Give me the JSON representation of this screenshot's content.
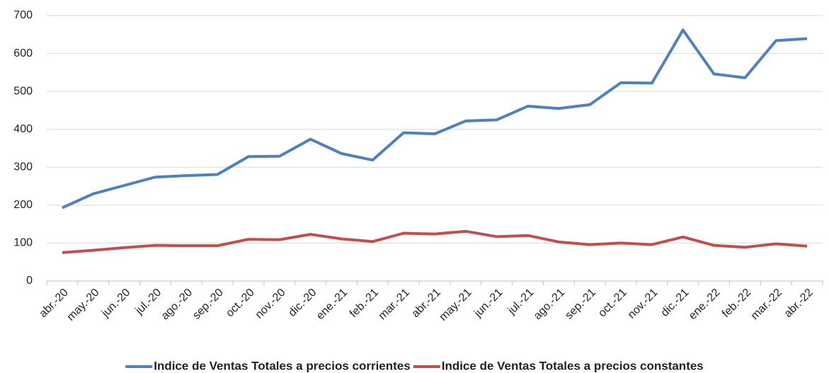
{
  "chart_data": {
    "type": "line",
    "categories": [
      "abr.-20",
      "may.-20",
      "jun.-20",
      "jul.-20",
      "ago.-20",
      "sep.-20",
      "oct.-20",
      "nov.-20",
      "dic.-20",
      "ene.-21",
      "feb.-21",
      "mar.-21",
      "abr.-21",
      "may.-21",
      "jun.-21",
      "jul.-21",
      "ago.-21",
      "sep.-21",
      "oct.-21",
      "nov.-21",
      "dic.-21",
      "ene.-22",
      "feb.-22",
      "mar.-22",
      "abr.-22"
    ],
    "series": [
      {
        "name": "Indice de Ventas Totales a precios corrientes",
        "color": "#4f81bd",
        "values": [
          193,
          230,
          252,
          274,
          278,
          281,
          328,
          329,
          374,
          336,
          319,
          391,
          388,
          422,
          425,
          461,
          455,
          465,
          523,
          522,
          662,
          546,
          536,
          634,
          639
        ]
      },
      {
        "name": "Indice de Ventas Totales a precios constantes",
        "color": "#c0504d",
        "values": [
          75,
          81,
          88,
          94,
          93,
          93,
          110,
          109,
          123,
          111,
          104,
          126,
          124,
          131,
          117,
          120,
          103,
          96,
          100,
          96,
          116,
          94,
          89,
          98,
          92
        ]
      }
    ],
    "ylim": [
      0,
      700
    ],
    "yticks": [
      0,
      100,
      200,
      300,
      400,
      500,
      600,
      700
    ],
    "grid": true,
    "legend": "bottom"
  }
}
